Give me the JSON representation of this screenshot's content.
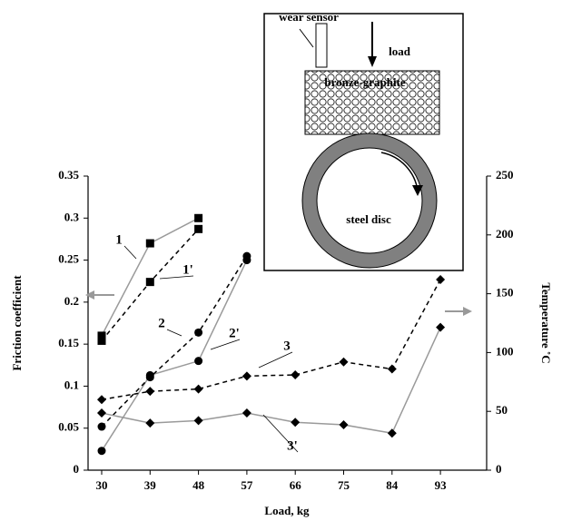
{
  "chart_data": {
    "type": "line",
    "x_label": "Load, kg",
    "y_label": "Friction coefficient",
    "y2_label": "Temperature ˚C",
    "categories": [
      "30",
      "39",
      "48",
      "57",
      "66",
      "75",
      "84",
      "93"
    ],
    "ylim": [
      0,
      0.35
    ],
    "yticks": [
      0,
      0.05,
      0.1,
      0.15,
      0.2,
      0.25,
      0.3,
      0.35
    ],
    "y2lim": [
      0,
      250
    ],
    "y2ticks": [
      0,
      50,
      100,
      150,
      200,
      250
    ],
    "series": [
      {
        "name": "1",
        "color": "#9a9a9a",
        "dashed": false,
        "marker": "square",
        "values": [
          0.16,
          0.27,
          0.3,
          null,
          null,
          null,
          null,
          null
        ]
      },
      {
        "name": "1'",
        "color": "#000000",
        "dashed": true,
        "marker": "square",
        "axis": "y2",
        "values": [
          110,
          160,
          205,
          null,
          null,
          null,
          null,
          null
        ]
      },
      {
        "name": "2",
        "color": "#9a9a9a",
        "dashed": false,
        "marker": "circle",
        "values": [
          0.023,
          0.113,
          0.13,
          0.25,
          null,
          null,
          null,
          null
        ]
      },
      {
        "name": "2'",
        "color": "#000000",
        "dashed": true,
        "marker": "circle",
        "axis": "y2",
        "values": [
          37,
          79,
          117,
          182,
          null,
          null,
          null,
          null
        ]
      },
      {
        "name": "3",
        "color": "#9a9a9a",
        "dashed": false,
        "marker": "diamond",
        "values": [
          0.068,
          0.056,
          0.059,
          0.068,
          0.057,
          0.054,
          0.044,
          0.17
        ]
      },
      {
        "name": "3'",
        "color": "#000000",
        "dashed": true,
        "marker": "diamond",
        "axis": "y2",
        "values": [
          60,
          67,
          69,
          80,
          81,
          92,
          86,
          162
        ]
      }
    ]
  },
  "inset": {
    "sensor": "wear sensor",
    "load": "load",
    "material": "bronze-graphite",
    "disc": "steel disc"
  }
}
